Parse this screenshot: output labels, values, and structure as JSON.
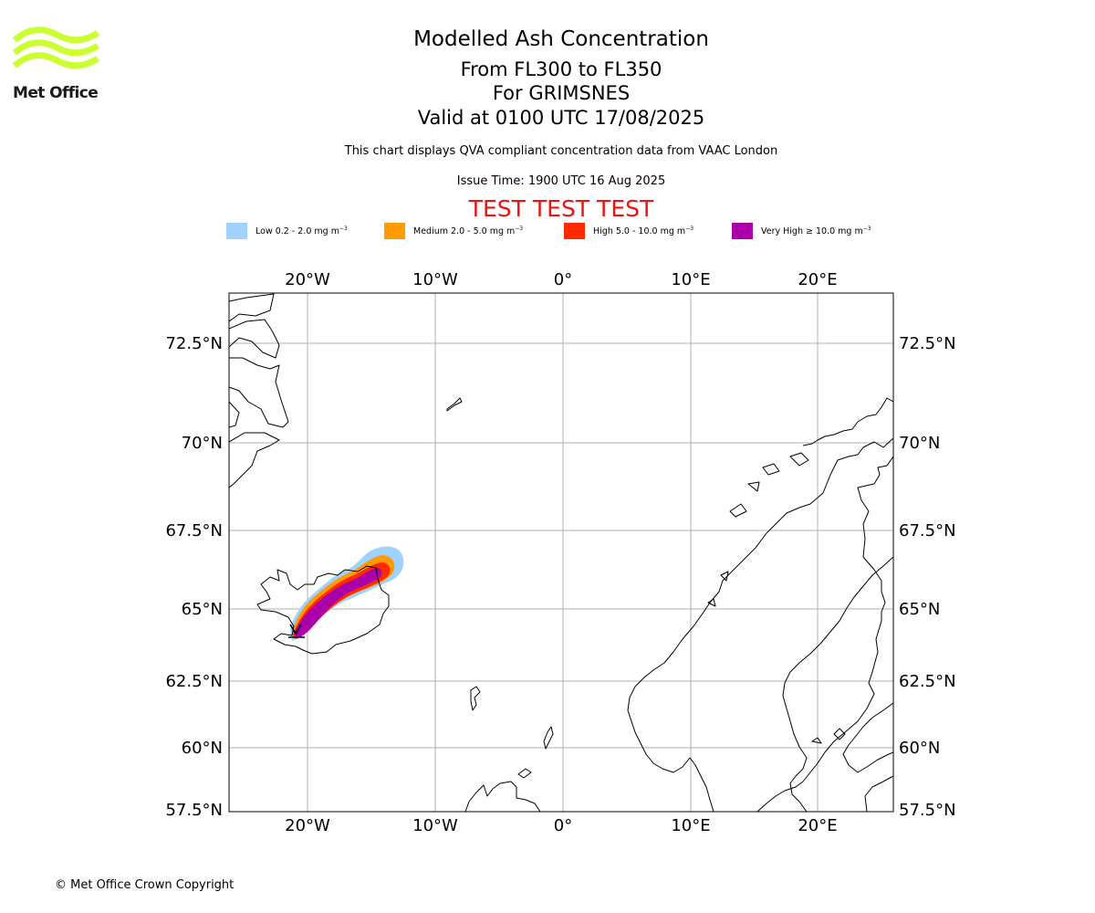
{
  "brand": {
    "name": "Met Office",
    "logo_color": "#ccff33"
  },
  "header": {
    "title": "Modelled Ash Concentration",
    "level_range": "From FL300 to FL350",
    "volcano": "For GRIMSNES",
    "valid_time": "Valid at 0100 UTC 17/08/2025",
    "description": "This chart displays QVA compliant concentration data from VAAC London",
    "issue_time": "Issue Time: 1900 UTC 16 Aug 2025",
    "test_banner": "TEST TEST TEST",
    "test_color": "#ee1111"
  },
  "legend": [
    {
      "name": "Low",
      "text": "Low 0.2 - 2.0 mg m",
      "color": "#a0d2ff"
    },
    {
      "name": "Medium",
      "text": "Medium 2.0 - 5.0 mg m",
      "color": "#ff9a00"
    },
    {
      "name": "High",
      "text": "High 5.0 - 10.0 mg m",
      "color": "#ff2a00"
    },
    {
      "name": "Very High",
      "text": "Very High ≥ 10.0 mg m",
      "color": "#aa00aa"
    }
  ],
  "legend_unit_exponent": "−3",
  "map": {
    "lon_labels": [
      "20°W",
      "10°W",
      "0°",
      "10°E",
      "20°E"
    ],
    "lat_labels": [
      "72.5°N",
      "70°N",
      "67.5°N",
      "65°N",
      "62.5°N",
      "60°N",
      "57.5°N"
    ],
    "gridlines": true,
    "coastline_color": "#000000",
    "grid_color": "#b0b0b0"
  },
  "footer": {
    "copyright": "© Met Office Crown Copyright"
  }
}
